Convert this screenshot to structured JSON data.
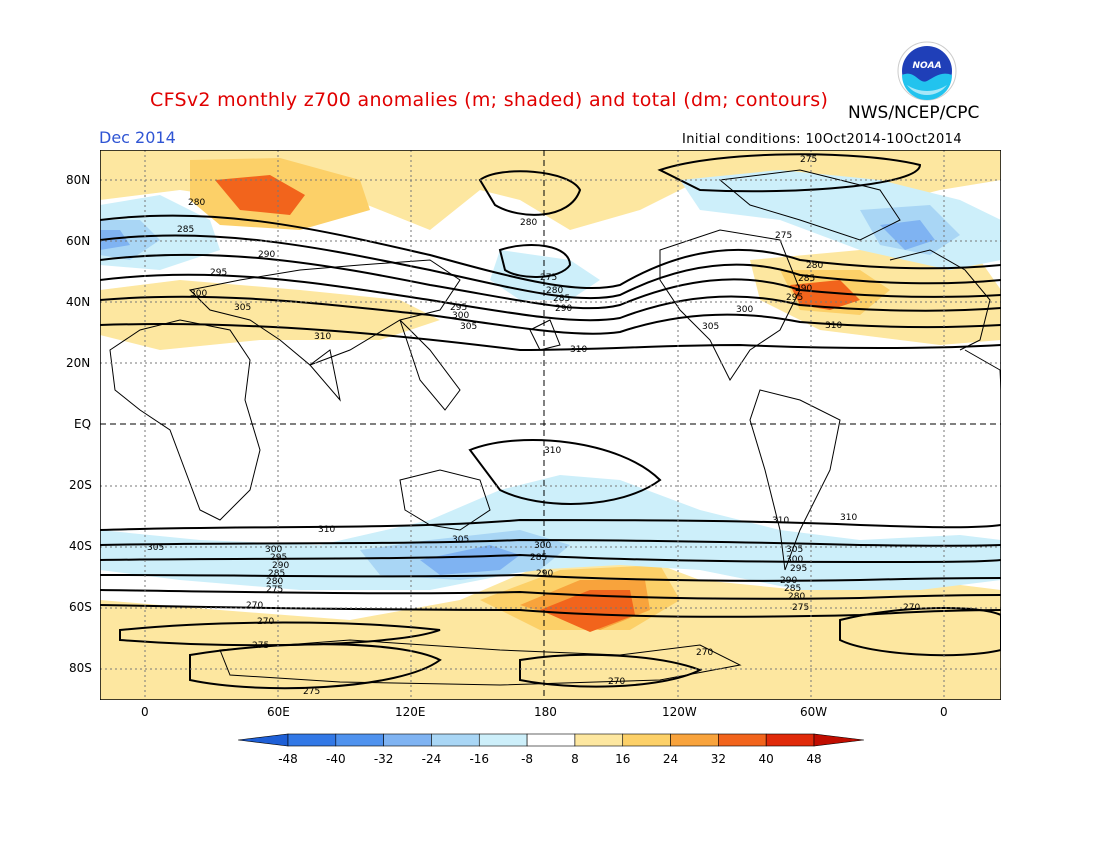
{
  "header": {
    "title": "CFSv2 monthly z700 anomalies (m; shaded) and total (dm; contours)",
    "agency": "NWS/NCEP/CPC",
    "month": "Dec 2014",
    "initial_conditions": "Initial conditions: 10Oct2014-10Oct2014",
    "logo_text": "NOAA"
  },
  "axes": {
    "lat_labels": [
      "80N",
      "60N",
      "40N",
      "20N",
      "EQ",
      "20S",
      "40S",
      "60S",
      "80S"
    ],
    "lon_labels": [
      "0",
      "60E",
      "120E",
      "180",
      "120W",
      "60W",
      "0"
    ]
  },
  "contour_labels": [
    "275",
    "280",
    "285",
    "290",
    "295",
    "300",
    "305",
    "310",
    "270"
  ],
  "colorbar": {
    "ticks": [
      "-48",
      "-40",
      "-32",
      "-24",
      "-16",
      "-8",
      "8",
      "16",
      "24",
      "32",
      "40",
      "48"
    ],
    "colors": [
      "#1e5fd6",
      "#3278e6",
      "#4f92ee",
      "#7fb3f2",
      "#a9d6f5",
      "#cdeffa",
      "#ffffff",
      "#fde7a0",
      "#fcd068",
      "#f8a33c",
      "#f2641c",
      "#e02a0a",
      "#c00d00"
    ]
  }
}
